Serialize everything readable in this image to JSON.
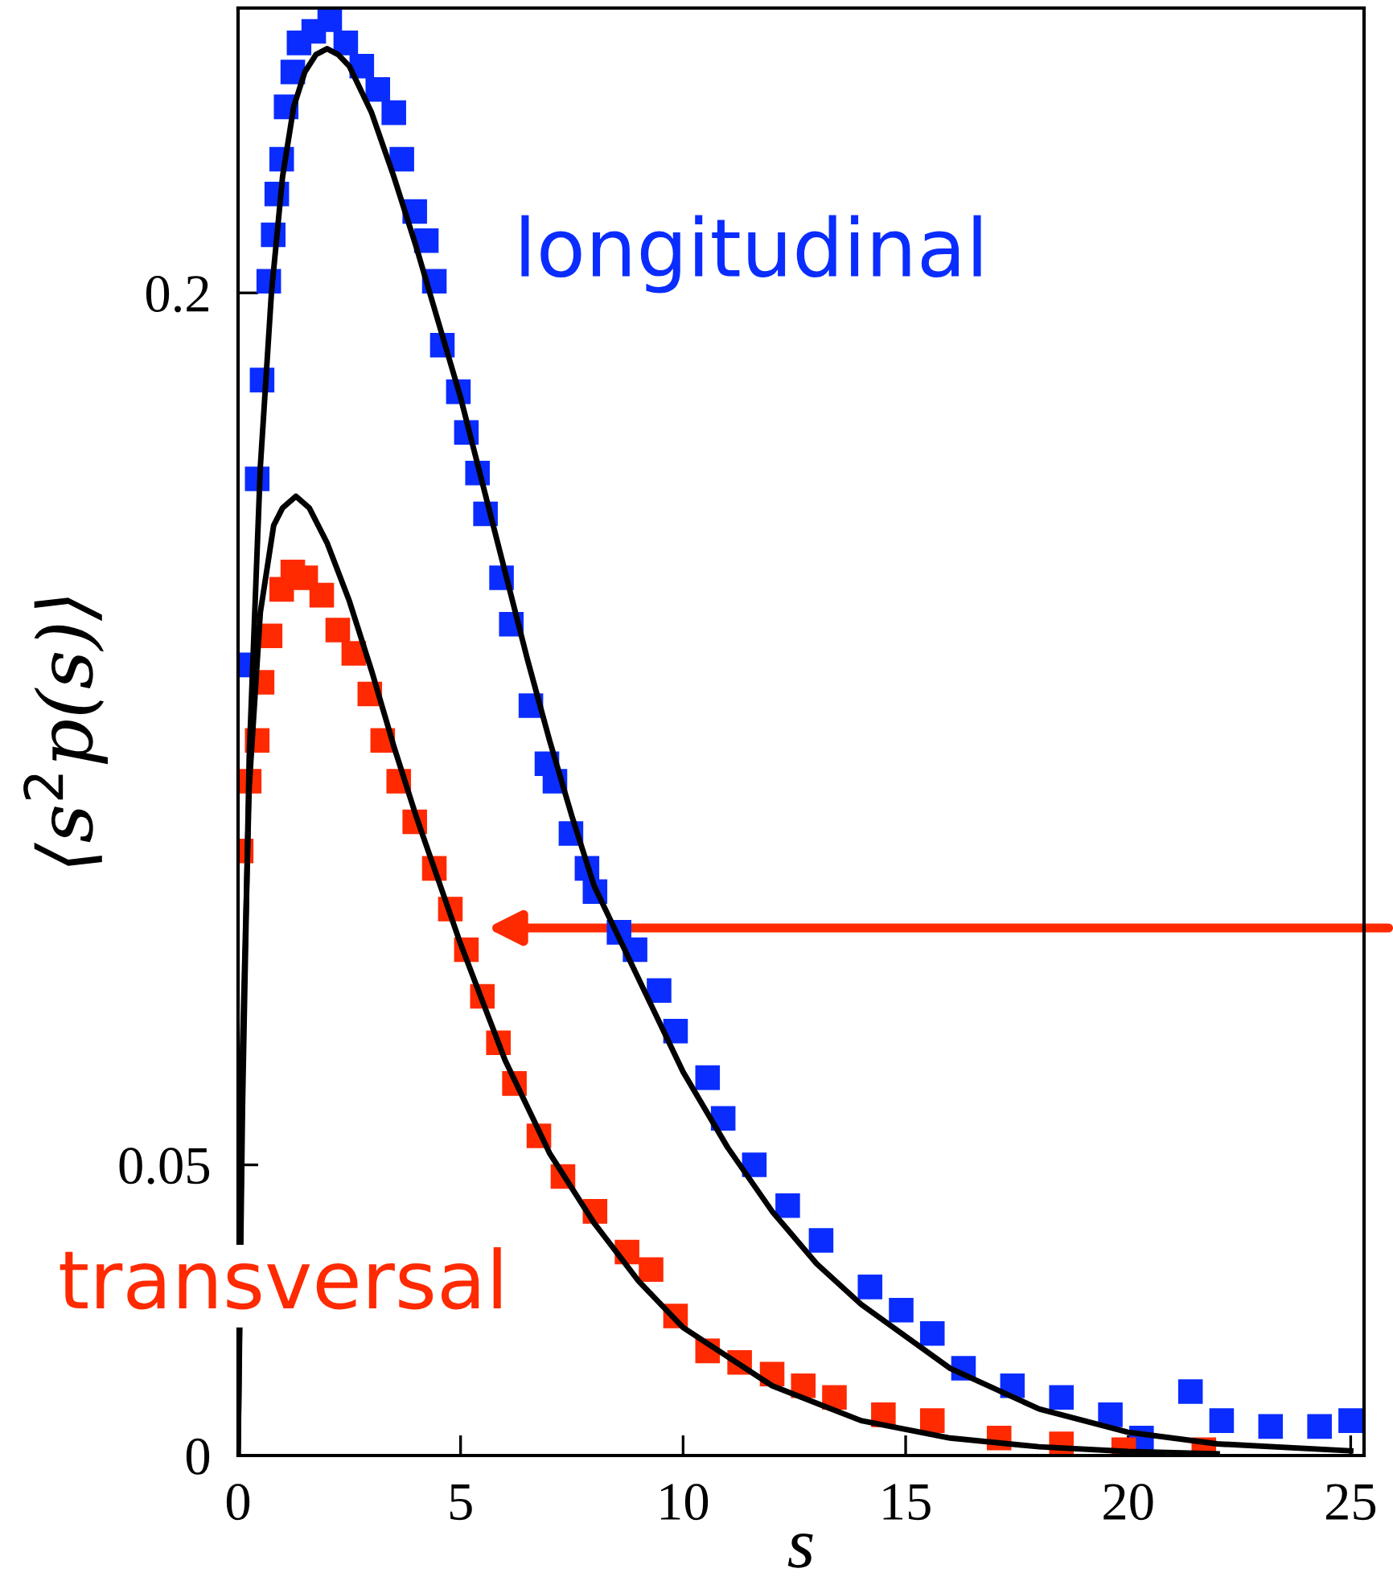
{
  "chart_data": {
    "type": "scatter",
    "xlabel": "s",
    "ylabel": "⟨s$^{2}$p(s)⟩",
    "xlim": [
      0,
      25.3
    ],
    "ylim": [
      0,
      0.249
    ],
    "xticks": [
      0,
      5,
      10,
      15,
      20,
      25
    ],
    "yticks": [
      0,
      0.05,
      0.2
    ],
    "grid": false,
    "legend": false,
    "marker": "square",
    "series": [
      {
        "name": "longitudinal",
        "color": "#0a2cff",
        "x": [
          0.14,
          0.43,
          0.54,
          0.69,
          0.79,
          0.87,
          0.98,
          1.08,
          1.23,
          1.37,
          1.7,
          2.06,
          2.42,
          2.78,
          3.14,
          3.5,
          3.68,
          3.97,
          4.23,
          4.41,
          4.59,
          4.95,
          5.13,
          5.38,
          5.56,
          5.92,
          6.14,
          6.58,
          6.94,
          7.12,
          7.48,
          7.84,
          8.02,
          8.56,
          8.92,
          9.46,
          9.83,
          10.55,
          10.9,
          11.6,
          12.35,
          13.1,
          14.2,
          14.9,
          15.6,
          16.3,
          17.4,
          18.5,
          19.6,
          20.3,
          21.4,
          22.1,
          23.2,
          24.3,
          25.0
        ],
        "values": [
          0.136,
          0.168,
          0.185,
          0.202,
          0.21,
          0.217,
          0.223,
          0.232,
          0.238,
          0.243,
          0.245,
          0.247,
          0.243,
          0.239,
          0.235,
          0.231,
          0.223,
          0.214,
          0.209,
          0.202,
          0.191,
          0.183,
          0.176,
          0.169,
          0.162,
          0.151,
          0.143,
          0.129,
          0.119,
          0.116,
          0.107,
          0.101,
          0.097,
          0.09,
          0.087,
          0.08,
          0.073,
          0.065,
          0.058,
          0.05,
          0.043,
          0.037,
          0.029,
          0.025,
          0.021,
          0.015,
          0.012,
          0.01,
          0.007,
          0.003,
          0.011,
          0.006,
          0.005,
          0.005,
          0.006
        ]
      },
      {
        "name": "transversal",
        "color": "#ff2a00",
        "x": [
          0.07,
          0.25,
          0.43,
          0.54,
          0.72,
          0.98,
          1.23,
          1.52,
          1.88,
          2.24,
          2.6,
          2.96,
          3.25,
          3.61,
          3.97,
          4.41,
          4.77,
          5.13,
          5.49,
          5.85,
          6.21,
          6.76,
          7.3,
          8.02,
          8.74,
          9.28,
          9.83,
          10.55,
          11.27,
          12.0,
          12.7,
          13.4,
          14.5,
          15.6,
          17.1,
          18.5,
          19.9,
          21.7
        ],
        "values": [
          0.104,
          0.116,
          0.123,
          0.133,
          0.141,
          0.149,
          0.152,
          0.151,
          0.148,
          0.142,
          0.138,
          0.131,
          0.123,
          0.116,
          0.109,
          0.101,
          0.094,
          0.087,
          0.079,
          0.071,
          0.064,
          0.055,
          0.048,
          0.042,
          0.035,
          0.032,
          0.024,
          0.018,
          0.016,
          0.014,
          0.012,
          0.01,
          0.007,
          0.006,
          0.003,
          0.002,
          0.001,
          0.001
        ]
      },
      {
        "color": "#000000",
        "type": "line",
        "marker": "none",
        "x": [
          0,
          0.1,
          0.25,
          0.5,
          0.75,
          1,
          1.25,
          1.5,
          1.75,
          2,
          2.25,
          2.5,
          3,
          3.5,
          4,
          4.5,
          5,
          5.5,
          6,
          6.5,
          7,
          7.5,
          8,
          9,
          10,
          11,
          12,
          13,
          14,
          16,
          18,
          20,
          22,
          25
        ],
        "values": [
          0,
          0.06,
          0.12,
          0.17,
          0.2,
          0.22,
          0.232,
          0.238,
          0.241,
          0.242,
          0.241,
          0.239,
          0.231,
          0.22,
          0.208,
          0.195,
          0.182,
          0.167,
          0.152,
          0.137,
          0.123,
          0.11,
          0.098,
          0.082,
          0.066,
          0.053,
          0.042,
          0.033,
          0.026,
          0.015,
          0.008,
          0.004,
          0.002,
          0.0008
        ]
      },
      {
        "color": "#000000",
        "type": "line",
        "marker": "none",
        "x": [
          0,
          0.1,
          0.25,
          0.5,
          0.8,
          1,
          1.3,
          1.6,
          2,
          2.5,
          3,
          3.5,
          4,
          4.5,
          5,
          5.5,
          6,
          7,
          8,
          9,
          10,
          12,
          14,
          16,
          18,
          20,
          22
        ],
        "values": [
          0,
          0.07,
          0.115,
          0.145,
          0.16,
          0.163,
          0.165,
          0.163,
          0.157,
          0.147,
          0.135,
          0.122,
          0.11,
          0.099,
          0.088,
          0.078,
          0.068,
          0.052,
          0.04,
          0.03,
          0.022,
          0.012,
          0.006,
          0.003,
          0.0015,
          0.0007,
          0.0003
        ]
      }
    ]
  }
}
